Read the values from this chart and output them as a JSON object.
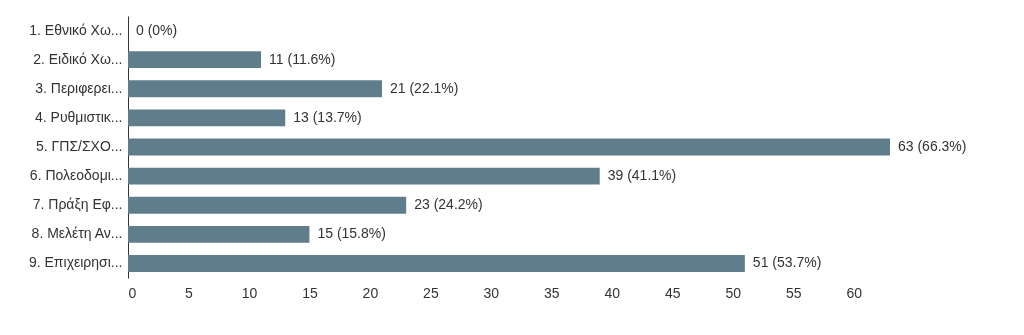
{
  "chart_data": {
    "type": "bar",
    "orientation": "horizontal",
    "categories": [
      "1. Εθνικό Χω...",
      "2. Ειδικό Χω...",
      "3. Περιφερει...",
      "4. Ρυθμιστικ...",
      "5. ΓΠΣ/ΣΧΟ...",
      "6. Πολεοδομι...",
      "7. Πράξη Εφ...",
      "8. Μελέτη Αν...",
      "9. Επιχειρησι..."
    ],
    "values": [
      0,
      11,
      21,
      13,
      63,
      39,
      23,
      15,
      51
    ],
    "value_labels": [
      "0 (0%)",
      "11 (11.6%)",
      "21 (22.1%)",
      "13 (13.7%)",
      "63 (66.3%)",
      "39 (41.1%)",
      "23 (24.2%)",
      "15 (15.8%)",
      "51 (53.7%)"
    ],
    "color": "#607d8b",
    "xlim": [
      0,
      63
    ],
    "xticks": [
      0,
      5,
      10,
      15,
      20,
      25,
      30,
      35,
      40,
      45,
      50,
      55,
      60
    ]
  }
}
